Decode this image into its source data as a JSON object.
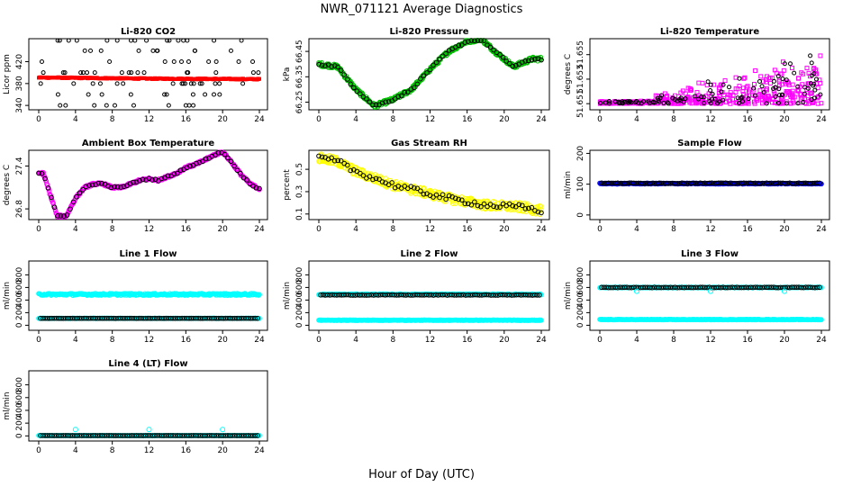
{
  "figure": {
    "title": "NWR_071121  Average Diagnostics",
    "xlabel": "Hour of Day (UTC)",
    "x_ticks": [
      0,
      4,
      8,
      12,
      16,
      20,
      24
    ],
    "x_range": [
      0,
      24
    ]
  },
  "chart_data": [
    {
      "id": "co2",
      "type": "scatter",
      "title": "Li-820 CO2",
      "ylabel": "Licor ppm",
      "yticks": [
        340,
        380,
        420
      ],
      "ylim": [
        332,
        462
      ],
      "series": [
        {
          "name": "points",
          "color": "#000000",
          "pattern": "levels",
          "levels": [
            340,
            360,
            380,
            400,
            420,
            440,
            460
          ],
          "values": [
            340,
            360,
            380,
            400,
            420,
            440,
            460
          ]
        },
        {
          "name": "average",
          "color": "#ff0000",
          "pattern": "linear",
          "start": 391,
          "end": 388,
          "noise": 2,
          "points": [
            [
              0.2,
              391
            ],
            [
              12,
              389
            ],
            [
              24,
              388
            ]
          ]
        }
      ]
    },
    {
      "id": "pressure",
      "type": "scatter",
      "title": "Li-820 Pressure",
      "ylabel": "kPa",
      "yticks": [
        66.25,
        66.35,
        66.45
      ],
      "ytick_labels": [
        "66.25",
        "66.35",
        "66.45"
      ],
      "ylim": [
        66.22,
        66.5
      ],
      "series": [
        {
          "name": "average",
          "color": "#00c000",
          "pattern": "curve",
          "noise": 0.008,
          "points": [
            [
              0,
              66.4
            ],
            [
              2,
              66.39
            ],
            [
              4,
              66.3
            ],
            [
              6,
              66.235
            ],
            [
              8,
              66.26
            ],
            [
              10,
              66.3
            ],
            [
              12,
              66.38
            ],
            [
              14,
              66.45
            ],
            [
              16,
              66.49
            ],
            [
              17.5,
              66.5
            ],
            [
              19,
              66.45
            ],
            [
              21,
              66.39
            ],
            [
              23,
              66.42
            ],
            [
              24,
              66.42
            ]
          ]
        },
        {
          "name": "points",
          "color": "#000000",
          "pattern": "curve-sparse",
          "noise": 0.004,
          "points": [
            [
              0,
              66.4
            ],
            [
              2,
              66.39
            ],
            [
              4,
              66.3
            ],
            [
              6,
              66.235
            ],
            [
              8,
              66.26
            ],
            [
              10,
              66.3
            ],
            [
              12,
              66.38
            ],
            [
              14,
              66.45
            ],
            [
              16,
              66.49
            ],
            [
              17.5,
              66.5
            ],
            [
              19,
              66.45
            ],
            [
              21,
              66.39
            ],
            [
              23,
              66.42
            ],
            [
              24,
              66.42
            ]
          ]
        }
      ]
    },
    {
      "id": "temperature",
      "type": "scatter",
      "title": "Li-820 Temperature",
      "ylabel": "degrees C",
      "yticks": [
        51.651,
        51.653,
        51.655
      ],
      "ytick_labels": [
        "51.651",
        "51.653",
        "51.655"
      ],
      "ylim": [
        51.6505,
        51.6563
      ],
      "series": [
        {
          "name": "average",
          "color": "#ff00ff",
          "pattern": "rising-scatter",
          "base": 51.651,
          "top": 51.656,
          "points": [
            [
              0,
              51.651
            ],
            [
              24,
              51.656
            ]
          ]
        },
        {
          "name": "points",
          "color": "#000000",
          "pattern": "rising-sparse",
          "base": 51.651,
          "top": 51.6558,
          "points": [
            [
              0,
              51.651
            ],
            [
              24,
              51.6558
            ]
          ]
        }
      ]
    },
    {
      "id": "ambient",
      "type": "scatter",
      "title": "Ambient Box Temperature",
      "ylabel": "degrees C",
      "yticks": [
        26.8,
        27.4
      ],
      "ytick_labels": [
        "26.8",
        "27.4"
      ],
      "ylim": [
        26.65,
        27.62
      ],
      "series": [
        {
          "name": "average",
          "color": "#ff00ff",
          "pattern": "curve",
          "noise": 0.015,
          "points": [
            [
              0,
              27.3
            ],
            [
              0.5,
              27.3
            ],
            [
              1,
              27.1
            ],
            [
              2,
              26.7
            ],
            [
              3,
              26.7
            ],
            [
              4,
              26.95
            ],
            [
              5,
              27.1
            ],
            [
              6,
              27.15
            ],
            [
              7,
              27.15
            ],
            [
              8,
              27.1
            ],
            [
              9,
              27.1
            ],
            [
              10,
              27.15
            ],
            [
              11,
              27.2
            ],
            [
              12,
              27.22
            ],
            [
              13,
              27.2
            ],
            [
              14,
              27.25
            ],
            [
              15,
              27.3
            ],
            [
              16,
              27.38
            ],
            [
              17,
              27.42
            ],
            [
              18,
              27.48
            ],
            [
              19,
              27.55
            ],
            [
              20,
              27.6
            ],
            [
              21,
              27.45
            ],
            [
              22,
              27.28
            ],
            [
              23,
              27.15
            ],
            [
              24,
              27.08
            ]
          ]
        },
        {
          "name": "points",
          "color": "#000000",
          "pattern": "curve-sparse",
          "noise": 0.01,
          "points": [
            [
              0,
              27.3
            ],
            [
              0.5,
              27.3
            ],
            [
              1,
              27.1
            ],
            [
              2,
              26.7
            ],
            [
              3,
              26.7
            ],
            [
              4,
              26.95
            ],
            [
              5,
              27.1
            ],
            [
              6,
              27.15
            ],
            [
              7,
              27.15
            ],
            [
              8,
              27.1
            ],
            [
              9,
              27.1
            ],
            [
              10,
              27.15
            ],
            [
              11,
              27.2
            ],
            [
              12,
              27.22
            ],
            [
              13,
              27.2
            ],
            [
              14,
              27.25
            ],
            [
              15,
              27.3
            ],
            [
              16,
              27.38
            ],
            [
              17,
              27.42
            ],
            [
              18,
              27.48
            ],
            [
              19,
              27.55
            ],
            [
              20,
              27.6
            ],
            [
              21,
              27.45
            ],
            [
              22,
              27.28
            ],
            [
              23,
              27.15
            ],
            [
              24,
              27.08
            ]
          ]
        }
      ]
    },
    {
      "id": "rh",
      "type": "scatter",
      "title": "Gas Stream RH",
      "ylabel": "percent",
      "yticks": [
        0.1,
        0.3,
        0.5
      ],
      "ylim": [
        0.05,
        0.67
      ],
      "series": [
        {
          "name": "average",
          "color": "#ffff00",
          "pattern": "curve",
          "noise": 0.04,
          "points": [
            [
              0,
              0.6
            ],
            [
              2,
              0.57
            ],
            [
              4,
              0.48
            ],
            [
              6,
              0.42
            ],
            [
              8,
              0.36
            ],
            [
              10,
              0.32
            ],
            [
              12,
              0.28
            ],
            [
              14,
              0.24
            ],
            [
              16,
              0.21
            ],
            [
              18,
              0.18
            ],
            [
              20,
              0.17
            ],
            [
              22,
              0.16
            ],
            [
              24,
              0.13
            ]
          ]
        },
        {
          "name": "points",
          "color": "#000000",
          "pattern": "curve-sparse",
          "noise": 0.025,
          "points": [
            [
              0,
              0.6
            ],
            [
              2,
              0.57
            ],
            [
              4,
              0.48
            ],
            [
              6,
              0.42
            ],
            [
              8,
              0.36
            ],
            [
              10,
              0.32
            ],
            [
              12,
              0.28
            ],
            [
              14,
              0.24
            ],
            [
              16,
              0.21
            ],
            [
              18,
              0.18
            ],
            [
              20,
              0.17
            ],
            [
              22,
              0.16
            ],
            [
              24,
              0.13
            ]
          ]
        }
      ]
    },
    {
      "id": "sample",
      "type": "scatter",
      "title": "Sample Flow",
      "ylabel": "ml/min",
      "yticks": [
        0,
        100,
        200
      ],
      "ylim": [
        -15,
        210
      ],
      "series": [
        {
          "name": "average",
          "color": "#0000ff",
          "pattern": "flat",
          "value": 102,
          "noise": 1.5,
          "points": [
            [
              0,
              102
            ],
            [
              24,
              102
            ]
          ]
        },
        {
          "name": "points",
          "color": "#000000",
          "pattern": "flat-sparse",
          "value": 103,
          "noise": 1,
          "points": [
            [
              0,
              103
            ],
            [
              24,
              103
            ]
          ]
        }
      ]
    },
    {
      "id": "line1",
      "type": "scatter",
      "title": "Line 1 Flow",
      "ylabel": "ml/min",
      "yticks": [
        0,
        200,
        400,
        600,
        800
      ],
      "ylim": [
        -80,
        1020
      ],
      "series": [
        {
          "name": "average-high",
          "color": "#00ffff",
          "pattern": "flat",
          "value": 490,
          "noise": 15,
          "points": [
            [
              0,
              490
            ],
            [
              24,
              490
            ]
          ]
        },
        {
          "name": "average-low",
          "color": "#00ffff",
          "pattern": "flat",
          "value": 110,
          "noise": 3,
          "points": [
            [
              0,
              110
            ],
            [
              24,
              110
            ]
          ]
        },
        {
          "name": "points",
          "color": "#000000",
          "pattern": "flat-sparse",
          "value": 110,
          "noise": 1,
          "points": [
            [
              0,
              110
            ],
            [
              24,
              110
            ]
          ]
        }
      ]
    },
    {
      "id": "line2",
      "type": "scatter",
      "title": "Line 2 Flow",
      "ylabel": "ml/min",
      "yticks": [
        0,
        200,
        400,
        600,
        800
      ],
      "ylim": [
        -80,
        1020
      ],
      "series": [
        {
          "name": "average-high",
          "color": "#00ffff",
          "pattern": "flat",
          "value": 490,
          "noise": 8,
          "points": [
            [
              0,
              490
            ],
            [
              24,
              490
            ]
          ]
        },
        {
          "name": "average-low",
          "color": "#00ffff",
          "pattern": "flat",
          "value": 80,
          "noise": 4,
          "points": [
            [
              0,
              80
            ],
            [
              24,
              80
            ]
          ]
        },
        {
          "name": "points",
          "color": "#000000",
          "pattern": "flat-sparse",
          "value": 480,
          "noise": 4,
          "points": [
            [
              0,
              480
            ],
            [
              24,
              480
            ]
          ]
        }
      ]
    },
    {
      "id": "line3",
      "type": "scatter",
      "title": "Line 3 Flow",
      "ylabel": "ml/min",
      "yticks": [
        0,
        200,
        400,
        600,
        800
      ],
      "ylim": [
        -80,
        1020
      ],
      "series": [
        {
          "name": "average-high",
          "color": "#00ffff",
          "pattern": "flat",
          "value": 600,
          "noise": 6,
          "points": [
            [
              0,
              600
            ],
            [
              24,
              600
            ]
          ]
        },
        {
          "name": "average-low",
          "color": "#00ffff",
          "pattern": "flat",
          "value": 90,
          "noise": 4,
          "points": [
            [
              0,
              90
            ],
            [
              24,
              90
            ]
          ]
        },
        {
          "name": "points",
          "color": "#000000",
          "pattern": "flat-sparse",
          "value": 600,
          "noise": 4,
          "points": [
            [
              0,
              600
            ],
            [
              24,
              600
            ]
          ]
        },
        {
          "name": "dips",
          "color": "#00ffff",
          "pattern": "markers",
          "points": [
            [
              4,
              540
            ],
            [
              12,
              540
            ],
            [
              20,
              540
            ]
          ]
        }
      ]
    },
    {
      "id": "line4",
      "type": "scatter",
      "title": "Line 4 (LT) Flow",
      "ylabel": "ml/min",
      "yticks": [
        0,
        200,
        400,
        600,
        800
      ],
      "ylim": [
        -80,
        1020
      ],
      "series": [
        {
          "name": "average",
          "color": "#00ffff",
          "pattern": "flat",
          "value": 5,
          "noise": 2,
          "points": [
            [
              0,
              5
            ],
            [
              24,
              5
            ]
          ]
        },
        {
          "name": "points",
          "color": "#000000",
          "pattern": "flat-sparse",
          "value": 5,
          "noise": 1,
          "points": [
            [
              0,
              5
            ],
            [
              24,
              5
            ]
          ]
        },
        {
          "name": "spikes",
          "color": "#00ffff",
          "pattern": "markers",
          "points": [
            [
              4,
              100
            ],
            [
              12,
              100
            ],
            [
              20,
              100
            ]
          ]
        }
      ]
    }
  ]
}
